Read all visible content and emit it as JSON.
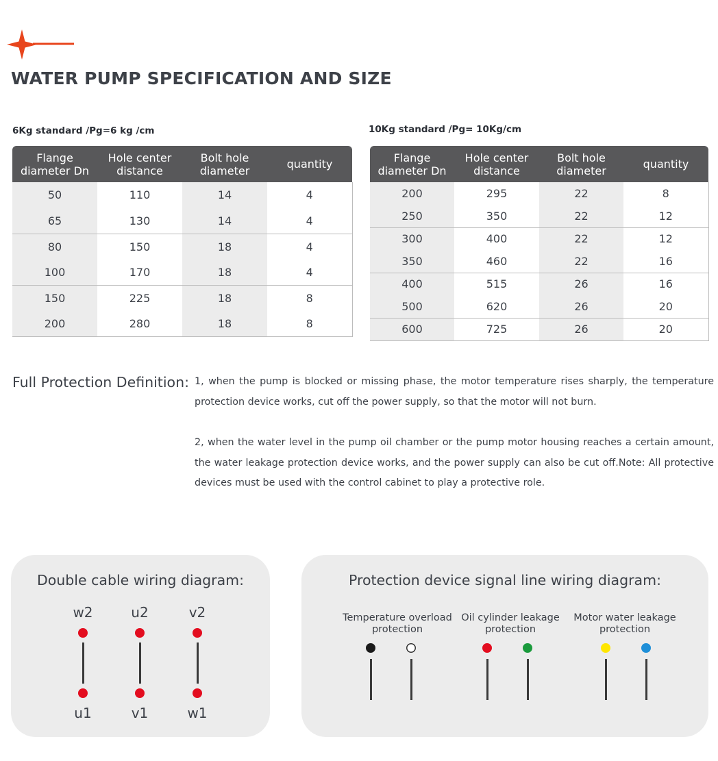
{
  "header": {
    "title": "WATER PUMP SPECIFICATION AND SIZE"
  },
  "logo": {
    "icon": "four-point-star-with-line",
    "color": "#e8451c"
  },
  "tables": {
    "headers": [
      "Flange diameter Dn",
      "Hole center distance",
      "Bolt hole diameter",
      "quantity"
    ],
    "kg6": {
      "caption": "6Kg standard /Pg=6 kg /cm",
      "rows": [
        [
          "50",
          "110",
          "14",
          "4"
        ],
        [
          "65",
          "130",
          "14",
          "4"
        ],
        [
          "80",
          "150",
          "18",
          "4"
        ],
        [
          "100",
          "170",
          "18",
          "4"
        ],
        [
          "150",
          "225",
          "18",
          "8"
        ],
        [
          "200",
          "280",
          "18",
          "8"
        ]
      ]
    },
    "kg10": {
      "caption": "10Kg standard /Pg= 10Kg/cm",
      "rows": [
        [
          "200",
          "295",
          "22",
          "8"
        ],
        [
          "250",
          "350",
          "22",
          "12"
        ],
        [
          "300",
          "400",
          "22",
          "12"
        ],
        [
          "350",
          "460",
          "22",
          "16"
        ],
        [
          "400",
          "515",
          "26",
          "16"
        ],
        [
          "500",
          "620",
          "26",
          "20"
        ],
        [
          "600",
          "725",
          "26",
          "20"
        ]
      ]
    }
  },
  "protection": {
    "heading": "Full Protection Definition:",
    "paragraphs": [
      "1, when the pump is blocked or missing phase, the motor temperature rises sharply, the temperature protection device works, cut off the power supply, so that the motor will not burn.",
      "2, when the water level in the pump oil chamber or the pump motor housing reaches a certain amount, the water leakage protection device works, and the power supply can also be cut off.Note: All protective devices must be used with the control cabinet to play a protective role."
    ]
  },
  "double_cable": {
    "title": "Double cable wiring diagram:",
    "dot_color": "#e30d1f",
    "wires": [
      {
        "top": "w2",
        "bottom": "u1"
      },
      {
        "top": "u2",
        "bottom": "v1"
      },
      {
        "top": "v2",
        "bottom": "w1"
      }
    ]
  },
  "signal": {
    "title": "Protection device signal line wiring diagram:",
    "groups": [
      {
        "label": "Temperature overload protection",
        "colors": [
          "#1a1a1a",
          "#ffffff"
        ]
      },
      {
        "label": "Oil cylinder leakage protection",
        "colors": [
          "#e30d1f",
          "#1a9a3c"
        ]
      },
      {
        "label": "Motor water leakage protection",
        "colors": [
          "#ffe600",
          "#1e8fd8"
        ]
      }
    ]
  }
}
